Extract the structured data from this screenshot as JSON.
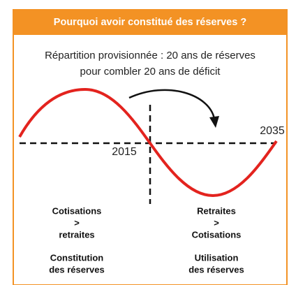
{
  "header": {
    "title": "Pourquoi avoir constitué des réserves ?"
  },
  "subtitle": [
    "Répartition provisionnée : 20 ans de réserves",
    "pour combler 20 ans de déficit"
  ],
  "labels": {
    "start": "2015",
    "end": "2035"
  },
  "left": {
    "lines": [
      "Cotisations",
      ">",
      "retraites"
    ],
    "result": [
      "Constitution",
      "des réserves"
    ]
  },
  "right": {
    "lines": [
      "Retraites",
      ">",
      "Cotisations"
    ],
    "result": [
      "Utilisation",
      "des réserves"
    ]
  }
}
